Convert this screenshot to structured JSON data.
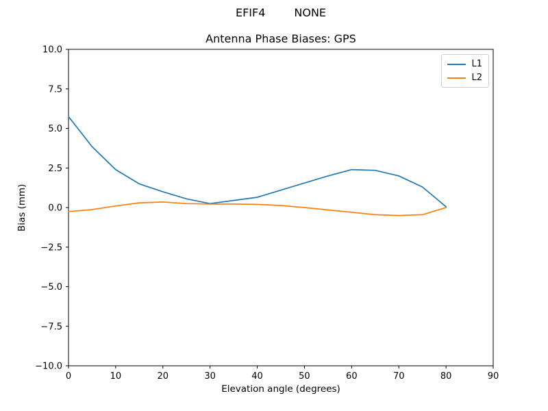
{
  "figure": {
    "suptitle_parts": [
      "EFIF4",
      "NONE"
    ]
  },
  "chart_data": {
    "type": "line",
    "suptitle": "EFIF4          NONE",
    "title": "Antenna Phase Biases: GPS",
    "xlabel": "Elevation angle (degrees)",
    "ylabel": "Bias (mm)",
    "xlim": [
      0,
      90
    ],
    "ylim": [
      -10.0,
      10.0
    ],
    "grid": false,
    "legend_position": "upper right",
    "x": [
      0,
      5,
      10,
      15,
      20,
      25,
      30,
      35,
      40,
      45,
      50,
      55,
      60,
      65,
      70,
      75,
      80
    ],
    "series": [
      {
        "name": "L1",
        "color": "#1f77b4",
        "values": [
          5.75,
          3.85,
          2.4,
          1.5,
          1.0,
          0.55,
          0.25,
          0.45,
          0.65,
          1.1,
          1.55,
          2.0,
          2.4,
          2.35,
          2.0,
          1.3,
          0.05
        ]
      },
      {
        "name": "L2",
        "color": "#ff7f0e",
        "values": [
          -0.25,
          -0.13,
          0.1,
          0.3,
          0.35,
          0.25,
          0.22,
          0.22,
          0.2,
          0.13,
          0.0,
          -0.15,
          -0.3,
          -0.45,
          -0.5,
          -0.45,
          0.0
        ]
      }
    ],
    "xticks": [
      {
        "v": 0,
        "label": "0"
      },
      {
        "v": 10,
        "label": "10"
      },
      {
        "v": 20,
        "label": "20"
      },
      {
        "v": 30,
        "label": "30"
      },
      {
        "v": 40,
        "label": "40"
      },
      {
        "v": 50,
        "label": "50"
      },
      {
        "v": 60,
        "label": "60"
      },
      {
        "v": 70,
        "label": "70"
      },
      {
        "v": 80,
        "label": "80"
      },
      {
        "v": 90,
        "label": "90"
      }
    ],
    "yticks": [
      {
        "v": 10.0,
        "label": "10.0"
      },
      {
        "v": 7.5,
        "label": "7.5"
      },
      {
        "v": 5.0,
        "label": "5.0"
      },
      {
        "v": 2.5,
        "label": "2.5"
      },
      {
        "v": 0.0,
        "label": "0.0"
      },
      {
        "v": -2.5,
        "label": "−2.5"
      },
      {
        "v": -5.0,
        "label": "−5.0"
      },
      {
        "v": -7.5,
        "label": "−7.5"
      },
      {
        "v": -10.0,
        "label": "−10.0"
      }
    ]
  }
}
